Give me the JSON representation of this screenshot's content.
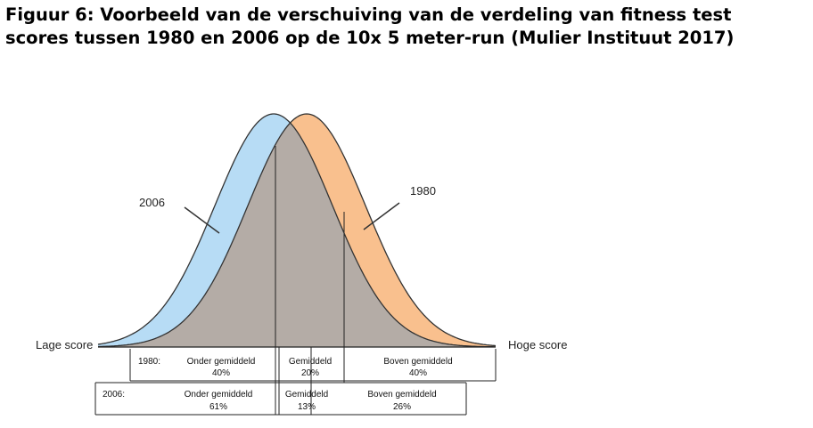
{
  "title": {
    "line1": "Figuur 6: Voorbeeld van de verschuiving van de verdeling van fitness test",
    "line2": "scores tussen 1980 en 2006 op de 10x 5 meter-run (Mulier Instituut 2017)"
  },
  "curves": {
    "label_2006": "2006",
    "label_1980": "1980",
    "axis_low": "Lage score",
    "axis_high": "Hoge score"
  },
  "table_1980": {
    "year": "1980:",
    "cells": [
      {
        "name": "Onder gemiddeld",
        "value": "40%"
      },
      {
        "name": "Gemiddeld",
        "value": "20%"
      },
      {
        "name": "Boven gemiddeld",
        "value": "40%"
      }
    ]
  },
  "table_2006": {
    "year": "2006:",
    "cells": [
      {
        "name": "Onder gemiddeld",
        "value": "61%"
      },
      {
        "name": "Gemiddeld",
        "value": "13%"
      },
      {
        "name": "Boven gemiddeld",
        "value": "26%"
      }
    ]
  },
  "colors": {
    "curve_2006": "#b7dcf5",
    "curve_1980": "#f9c08e",
    "overlap": "#b4aca6"
  }
}
